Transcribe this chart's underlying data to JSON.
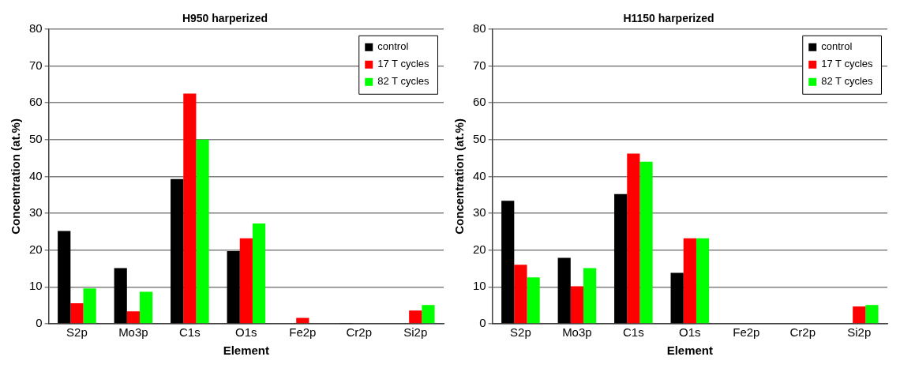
{
  "chart_data": [
    {
      "type": "bar",
      "title": "H950 harperized",
      "xlabel": "Element",
      "ylabel": "Concentration (at.%)",
      "categories": [
        "S2p",
        "Mo3p",
        "C1s",
        "O1s",
        "Fe2p",
        "Cr2p",
        "Si2p"
      ],
      "ylim": [
        0,
        80
      ],
      "yticks": [
        0,
        10,
        20,
        30,
        40,
        50,
        60,
        70,
        80
      ],
      "grid": "y",
      "legend": "top right",
      "series": [
        {
          "name": "control",
          "color": "#000000",
          "values": [
            25.2,
            15.1,
            39.3,
            19.7,
            null,
            0.1,
            0
          ]
        },
        {
          "name": "17 T cycles",
          "color": "#ff0000",
          "values": [
            5.6,
            3.4,
            62.5,
            23.2,
            1.6,
            null,
            3.6
          ]
        },
        {
          "name": "82 T cycles",
          "color": "#00ff00",
          "values": [
            9.6,
            8.7,
            50,
            27.2,
            0,
            0,
            5.1
          ]
        }
      ]
    },
    {
      "type": "bar",
      "title": "H1150 harperized",
      "xlabel": "Element",
      "ylabel": "Concentration (at.%)",
      "categories": [
        "S2p",
        "Mo3p",
        "C1s",
        "O1s",
        "Fe2p",
        "Cr2p",
        "Si2p"
      ],
      "ylim": [
        0,
        80
      ],
      "yticks": [
        0,
        10,
        20,
        30,
        40,
        50,
        60,
        70,
        80
      ],
      "grid": "y",
      "legend": "top right",
      "series": [
        {
          "name": "control",
          "color": "#000000",
          "values": [
            33.4,
            17.9,
            35.2,
            13.8,
            0,
            0,
            0
          ]
        },
        {
          "name": "17 T cycles",
          "color": "#ff0000",
          "values": [
            16,
            10.2,
            46.2,
            23.2,
            0,
            0,
            4.7
          ]
        },
        {
          "name": "82 T cycles",
          "color": "#00ff00",
          "values": [
            12.6,
            15.1,
            44,
            23.2,
            0,
            0,
            5.1
          ]
        }
      ]
    }
  ]
}
